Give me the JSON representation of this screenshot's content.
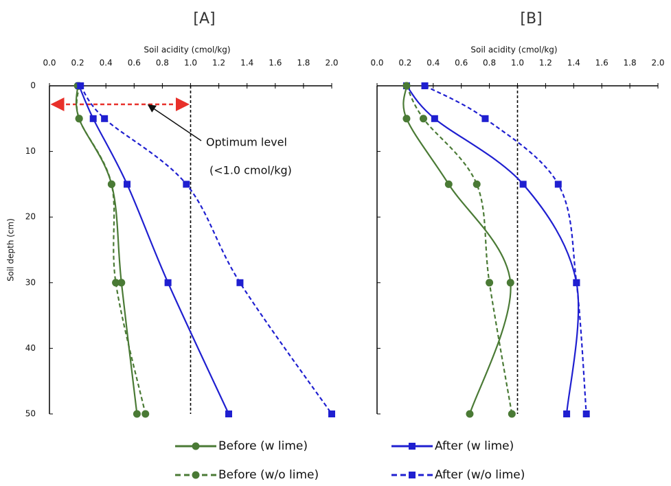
{
  "chart_data": [
    {
      "type": "line",
      "title": "[A]",
      "x_label": "Soil acidity (cmol/kg)",
      "y_label": "Soil depth (cm)",
      "xlim": [
        0,
        2
      ],
      "xticks": [
        {
          "value": 0,
          "label": "0.0"
        },
        {
          "value": 0.2,
          "label": "0.2"
        },
        {
          "value": 0.4,
          "label": "0.4"
        },
        {
          "value": 0.6,
          "label": "0.6"
        },
        {
          "value": 0.8,
          "label": "0.8"
        },
        {
          "value": 1,
          "label": "1.0"
        },
        {
          "value": 1.2,
          "label": "1.2"
        },
        {
          "value": 1.4,
          "label": "1.4"
        },
        {
          "value": 1.6,
          "label": "1.6"
        },
        {
          "value": 1.8,
          "label": "1.8"
        },
        {
          "value": 2,
          "label": "2.0"
        }
      ],
      "ylim": [
        0,
        50
      ],
      "yticks": [
        0,
        10,
        20,
        30,
        40,
        50
      ],
      "y_inverted": true,
      "depths": [
        0,
        5,
        15,
        30,
        50
      ],
      "reference_x": 1,
      "annotations": [
        "Optimum level",
        "(<1.0 cmol/kg)"
      ],
      "series": [
        {
          "name": "Before (w lime)",
          "color": "#4a7a35",
          "dashed": false,
          "marker": "circle",
          "values": [
            0.2,
            0.21,
            0.44,
            0.51,
            0.62
          ]
        },
        {
          "name": "After (w lime)",
          "color": "#1f1fd0",
          "dashed": false,
          "marker": "square",
          "values": [
            0.21,
            0.31,
            0.55,
            0.84,
            1.27
          ]
        },
        {
          "name": "Before (w/o lime)",
          "color": "#4a7a35",
          "dashed": true,
          "marker": "circle",
          "values": [
            0.21,
            0.21,
            0.44,
            0.47,
            0.68
          ]
        },
        {
          "name": "After (w/o lime)",
          "color": "#1f1fd0",
          "dashed": true,
          "marker": "square",
          "values": [
            0.22,
            0.39,
            0.97,
            1.35,
            2.0
          ]
        }
      ]
    },
    {
      "type": "line",
      "title": "[B]",
      "x_label": "Soil acidity (cmol/kg)",
      "xlim": [
        0,
        2
      ],
      "xticks": [
        {
          "value": 0,
          "label": "0.0"
        },
        {
          "value": 0.2,
          "label": "0.2"
        },
        {
          "value": 0.4,
          "label": "0.4"
        },
        {
          "value": 0.6,
          "label": "0.6"
        },
        {
          "value": 0.8,
          "label": "0.8"
        },
        {
          "value": 1,
          "label": "1.0"
        },
        {
          "value": 1.2,
          "label": "1.2"
        },
        {
          "value": 1.4,
          "label": "1.4"
        },
        {
          "value": 1.6,
          "label": "1.6"
        },
        {
          "value": 1.8,
          "label": "1.8"
        },
        {
          "value": 2,
          "label": "2.0"
        }
      ],
      "ylim": [
        0,
        50
      ],
      "yticks": [
        0,
        10,
        20,
        30,
        40,
        50
      ],
      "y_inverted": true,
      "depths": [
        0,
        5,
        15,
        30,
        50
      ],
      "reference_x": 1,
      "series": [
        {
          "color": "#4a7a35",
          "dashed": false,
          "marker": "circle",
          "values": [
            0.21,
            0.21,
            0.51,
            0.95,
            0.66
          ]
        },
        {
          "color": "#1f1fd0",
          "dashed": false,
          "marker": "square",
          "values": [
            0.21,
            0.41,
            1.04,
            1.42,
            1.35
          ]
        },
        {
          "color": "#4a7a35",
          "dashed": true,
          "marker": "circle",
          "values": [
            0.21,
            0.33,
            0.71,
            0.8,
            0.96
          ]
        },
        {
          "color": "#1f1fd0",
          "dashed": true,
          "marker": "square",
          "values": [
            0.34,
            0.77,
            1.29,
            1.42,
            1.49
          ]
        }
      ]
    }
  ]
}
